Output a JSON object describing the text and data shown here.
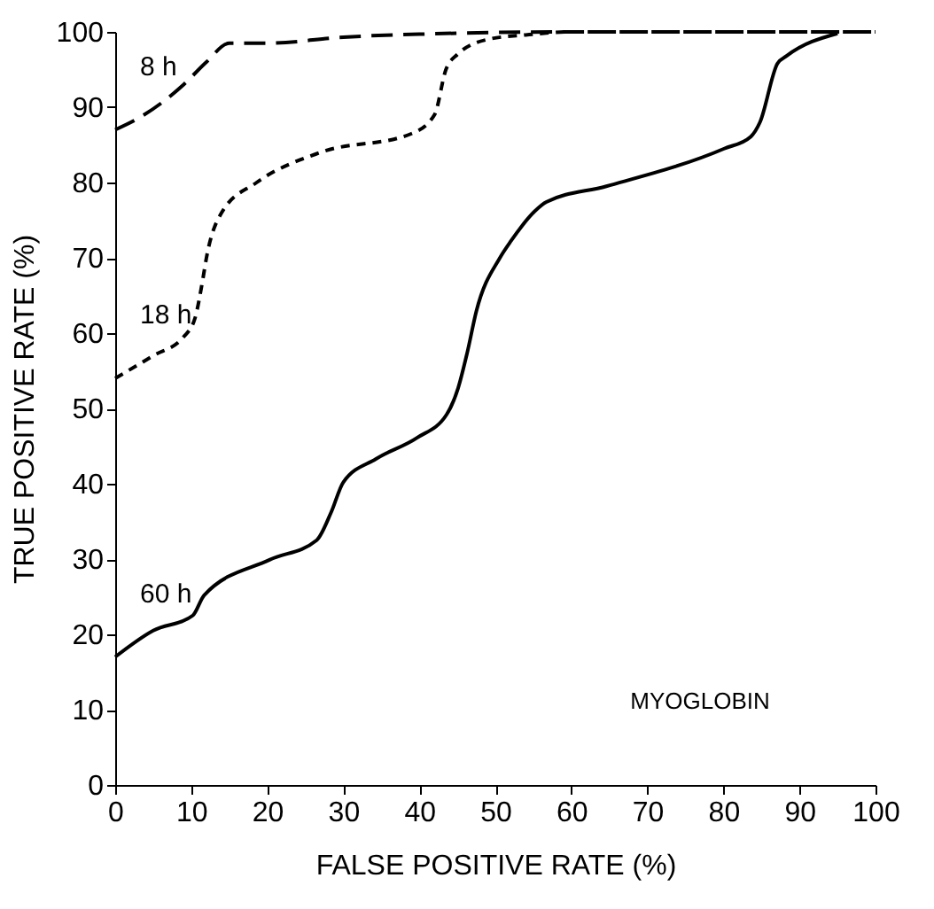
{
  "chart_data": {
    "type": "line",
    "xlabel": "FALSE POSITIVE RATE (%)",
    "ylabel": "TRUE POSITIVE RATE (%)",
    "xlim": [
      0,
      100
    ],
    "ylim": [
      0,
      100
    ],
    "xticks": [
      0,
      10,
      20,
      30,
      40,
      50,
      60,
      70,
      80,
      90,
      100
    ],
    "yticks": [
      0,
      10,
      20,
      30,
      40,
      50,
      60,
      70,
      80,
      90,
      100
    ],
    "grid": false,
    "marker": "none",
    "annotations": [
      "MYOGLOBIN"
    ],
    "series": [
      {
        "name": "8 h",
        "color": "#000000",
        "line_style": "dashed",
        "x": [
          0,
          3,
          6,
          9,
          12,
          15,
          20,
          30,
          40,
          60,
          100
        ],
        "values": [
          87,
          88.5,
          90.5,
          93,
          96,
          98.5,
          98.5,
          99.3,
          99.7,
          100,
          100
        ]
      },
      {
        "name": "18 h",
        "color": "#000000",
        "line_style": "dotted",
        "x": [
          0,
          5,
          9,
          10.5,
          11.5,
          12,
          14,
          18.6,
          27,
          39,
          42,
          43.5,
          45,
          49,
          54,
          60,
          100
        ],
        "values": [
          54,
          57,
          59.5,
          62,
          67,
          70,
          76,
          80,
          84,
          86.5,
          89,
          95,
          97,
          99,
          99.6,
          100,
          100
        ]
      },
      {
        "name": "60 h",
        "color": "#000000",
        "line_style": "solid",
        "x": [
          0,
          5,
          10.2,
          11.7,
          20.3,
          26.5,
          28.4,
          30,
          34.3,
          39.7,
          43.6,
          45.1,
          46.3,
          47.5,
          50.6,
          52.1,
          55.2,
          56.7,
          64.6,
          80.1,
          83.6,
          84.8,
          87.1,
          88.3,
          95
        ],
        "values": [
          17,
          20.5,
          22.5,
          25.2,
          29.9,
          32.5,
          36.2,
          40.2,
          43.3,
          46.1,
          49.2,
          52.7,
          57.4,
          62.9,
          70,
          72.3,
          76.2,
          77.4,
          79.5,
          84.5,
          86.1,
          88,
          95.8,
          96.8,
          99.8
        ]
      }
    ]
  }
}
